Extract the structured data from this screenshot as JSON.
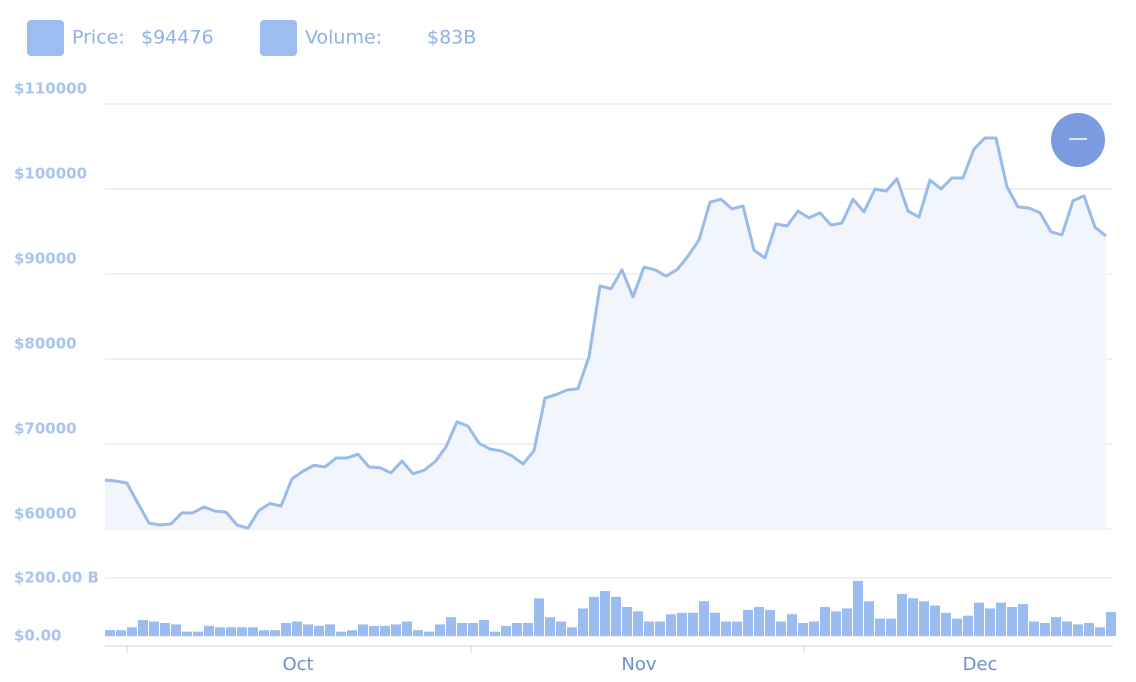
{
  "chart_data": {
    "type": "line",
    "series": [
      {
        "name": "Price:",
        "color": "#9abbe9",
        "values": [
          65765,
          65650,
          65400,
          63000,
          60700,
          60470,
          60600,
          61900,
          61900,
          62600,
          62100,
          62000,
          60470,
          60100,
          62200,
          63000,
          62700,
          65900,
          66800,
          67500,
          67300,
          68350,
          68350,
          68800,
          67300,
          67200,
          66600,
          68000,
          66500,
          66900,
          67900,
          69650,
          72600,
          72100,
          70100,
          69400,
          69200,
          68600,
          67650,
          69200,
          75400,
          75800,
          76350,
          76500,
          80250,
          88600,
          88250,
          90500,
          87300,
          90800,
          90500,
          89750,
          90500,
          92100,
          94000,
          98450,
          98800,
          97650,
          98000,
          92800,
          91900,
          95900,
          95650,
          97400,
          96600,
          97200,
          95750,
          96000,
          98800,
          97300,
          100000,
          99750,
          101200,
          97400,
          96700,
          101050,
          100000,
          101300,
          101300,
          104700,
          106000,
          106000,
          100250,
          97900,
          97750,
          97200,
          94950,
          94600,
          98600,
          99200,
          95500,
          94476
        ]
      },
      {
        "name": "Volume:",
        "color": "#9bbcef",
        "axis": "y2",
        "values": [
          20,
          20,
          30,
          55,
          50,
          45,
          40,
          15,
          15,
          35,
          30,
          30,
          30,
          30,
          20,
          20,
          45,
          50,
          40,
          35,
          40,
          15,
          20,
          40,
          35,
          35,
          40,
          50,
          20,
          15,
          40,
          65,
          45,
          45,
          55,
          15,
          35,
          45,
          45,
          130,
          65,
          50,
          30,
          95,
          135,
          155,
          135,
          100,
          85,
          50,
          50,
          75,
          80,
          80,
          120,
          80,
          50,
          50,
          90,
          100,
          90,
          50,
          75,
          45,
          50,
          100,
          85,
          95,
          190,
          120,
          60,
          60,
          145,
          130,
          120,
          105,
          80,
          60,
          70,
          115,
          95,
          115,
          100,
          110,
          50,
          45,
          65,
          50,
          40,
          45,
          30,
          83
        ]
      }
    ],
    "legend_values": [
      "$94476",
      "$83B"
    ],
    "categories": [
      null,
      null,
      null,
      null,
      null,
      null,
      null,
      null,
      null,
      null,
      null,
      null,
      null,
      null,
      null,
      null,
      null,
      "Oct",
      null,
      null,
      null,
      null,
      null,
      null,
      null,
      null,
      null,
      null,
      null,
      null,
      null,
      null,
      null,
      null,
      null,
      null,
      null,
      null,
      null,
      null,
      null,
      null,
      null,
      null,
      null,
      null,
      null,
      null,
      "Nov",
      null,
      null,
      null,
      null,
      null,
      null,
      null,
      null,
      null,
      null,
      null,
      null,
      null,
      null,
      null,
      null,
      null,
      null,
      null,
      null,
      null,
      null,
      null,
      null,
      null,
      null,
      null,
      null,
      null,
      null,
      "Dec",
      null,
      null,
      null,
      null,
      null,
      null,
      null,
      null,
      null,
      null,
      null,
      null
    ],
    "ylim": [
      60000,
      110000
    ],
    "yticks": [
      {
        "value": 60000,
        "label": "$60000"
      },
      {
        "value": 70000,
        "label": "$70000"
      },
      {
        "value": 80000,
        "label": "$80000"
      },
      {
        "value": 90000,
        "label": "$90000"
      },
      {
        "value": 100000,
        "label": "$100000"
      },
      {
        "value": 110000,
        "label": "$110000"
      }
    ],
    "y2lim": [
      0,
      200
    ],
    "y2ticks": [
      {
        "value": 0,
        "label": "$0.00"
      },
      {
        "value": 200,
        "label": "$200.00 B"
      }
    ],
    "grid": true
  }
}
